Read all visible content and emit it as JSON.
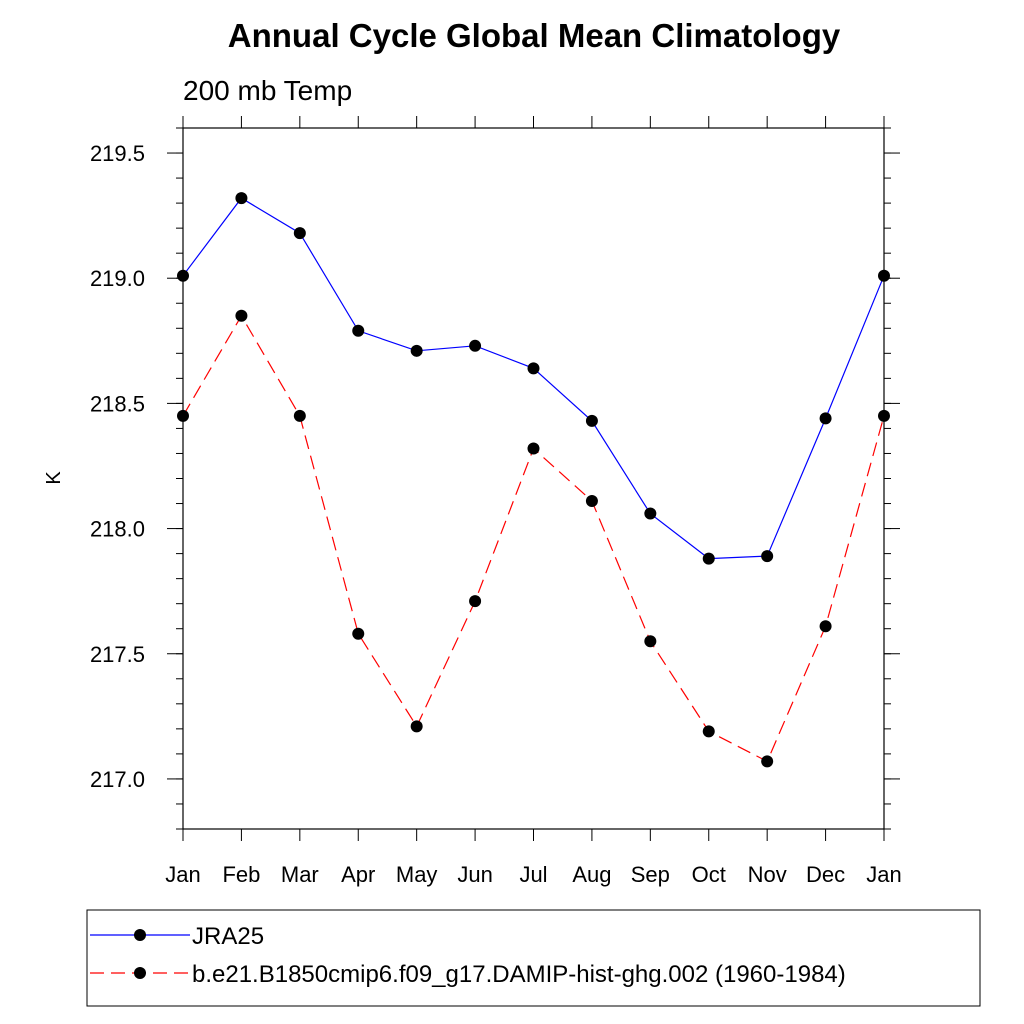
{
  "chart_data": {
    "type": "line",
    "title": "Annual Cycle Global Mean Climatology",
    "subtitle": "200 mb Temp",
    "xlabel": "",
    "ylabel": "K",
    "categories": [
      "Jan",
      "Feb",
      "Mar",
      "Apr",
      "May",
      "Jun",
      "Jul",
      "Aug",
      "Sep",
      "Oct",
      "Nov",
      "Dec",
      "Jan"
    ],
    "ylim": [
      216.8,
      219.6
    ],
    "yticks": [
      217.0,
      217.5,
      218.0,
      218.5,
      219.0,
      219.5
    ],
    "ytick_labels": [
      "217.0",
      "217.5",
      "218.0",
      "218.5",
      "219.0",
      "219.5"
    ],
    "grid": false,
    "legend_position": "bottom",
    "series": [
      {
        "name": "JRA25",
        "color": "#0000ff",
        "line_style": "solid",
        "marker": "filled-circle",
        "values": [
          219.01,
          219.32,
          219.18,
          218.79,
          218.71,
          218.73,
          218.64,
          218.43,
          218.06,
          217.88,
          217.89,
          218.44,
          219.01
        ]
      },
      {
        "name": "b.e21.B1850cmip6.f09_g17.DAMIP-hist-ghg.002 (1960-1984)",
        "color": "#ff0000",
        "line_style": "dashed",
        "marker": "filled-circle",
        "values": [
          218.45,
          218.85,
          218.45,
          217.58,
          217.21,
          217.71,
          218.32,
          218.11,
          217.55,
          217.19,
          217.07,
          217.61,
          218.45
        ]
      }
    ]
  }
}
